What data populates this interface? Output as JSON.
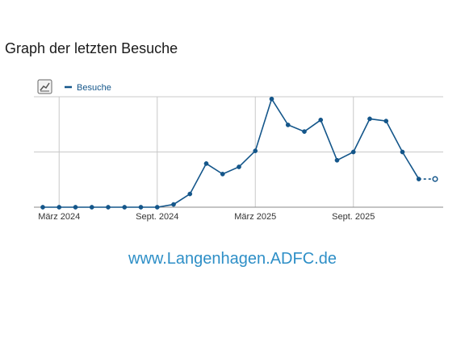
{
  "page": {
    "title": "Graph der letzten Besuche",
    "footer_url": "www.Langenhagen.ADFC.de"
  },
  "colors": {
    "series": "#14568a",
    "grid": "#c8c8c8",
    "url": "#2e8fc7"
  },
  "icons": {
    "chart_toggle": "line-chart-icon"
  },
  "chart_data": {
    "type": "line",
    "legend": {
      "position": "top-left",
      "entries": [
        "Besuche"
      ]
    },
    "x": [
      "2024-02",
      "2024-03",
      "2024-04",
      "2024-05",
      "2024-06",
      "2024-07",
      "2024-08",
      "2024-09",
      "2024-10",
      "2024-11",
      "2024-12",
      "2025-01",
      "2025-02",
      "2025-03",
      "2025-04",
      "2025-05",
      "2025-06",
      "2025-07",
      "2025-08",
      "2025-09",
      "2025-10",
      "2025-11",
      "2025-12",
      "2026-01",
      "2026-02"
    ],
    "x_tick_labels": [
      "März 2024",
      "Sept. 2024",
      "März 2025",
      "Sept. 2025"
    ],
    "x_tick_positions": [
      "2024-03",
      "2024-09",
      "2025-03",
      "2025-09"
    ],
    "series": [
      {
        "name": "Besuche",
        "values": [
          0,
          0,
          0,
          0,
          0,
          0,
          0,
          0,
          0.5,
          2.4,
          7.9,
          6.0,
          7.3,
          10.2,
          19.6,
          14.9,
          13.7,
          15.8,
          8.5,
          10.0,
          16.0,
          15.6,
          10.0,
          5.1,
          5.1
        ],
        "estimated_last_point": true
      }
    ],
    "ylim": [
      0,
      20
    ],
    "y_gridlines": [
      10,
      20
    ],
    "grid": true
  }
}
